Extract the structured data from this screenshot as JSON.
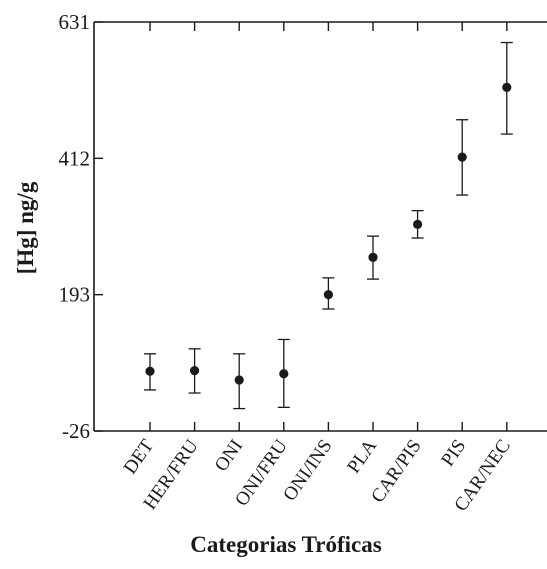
{
  "chart_data": {
    "type": "scatter",
    "title": "",
    "xlabel": "Categorias Tróficas",
    "ylabel": "[Hg] ng/g",
    "ylim": [
      -26,
      631
    ],
    "yticks": [
      "631",
      "412",
      "193",
      "-26"
    ],
    "ytick_values": [
      631,
      412,
      193,
      -26
    ],
    "grid": false,
    "categories": [
      "DET",
      "HER/FRU",
      "ONI",
      "ONI/FRU",
      "ONI/INS",
      "PLA",
      "CAR/PIS",
      "PIS",
      "CAR/NEC"
    ],
    "series": [
      {
        "values": [
          70,
          71,
          56,
          66,
          193,
          253,
          306,
          414,
          526
        ],
        "error_low": [
          40,
          35,
          10,
          12,
          170,
          218,
          284,
          353,
          451
        ],
        "error_high": [
          98,
          106,
          98,
          121,
          220,
          287,
          328,
          474,
          598
        ]
      }
    ],
    "colors": {
      "marker": "#1a1a1a",
      "axis": "#1a1a1a"
    }
  }
}
